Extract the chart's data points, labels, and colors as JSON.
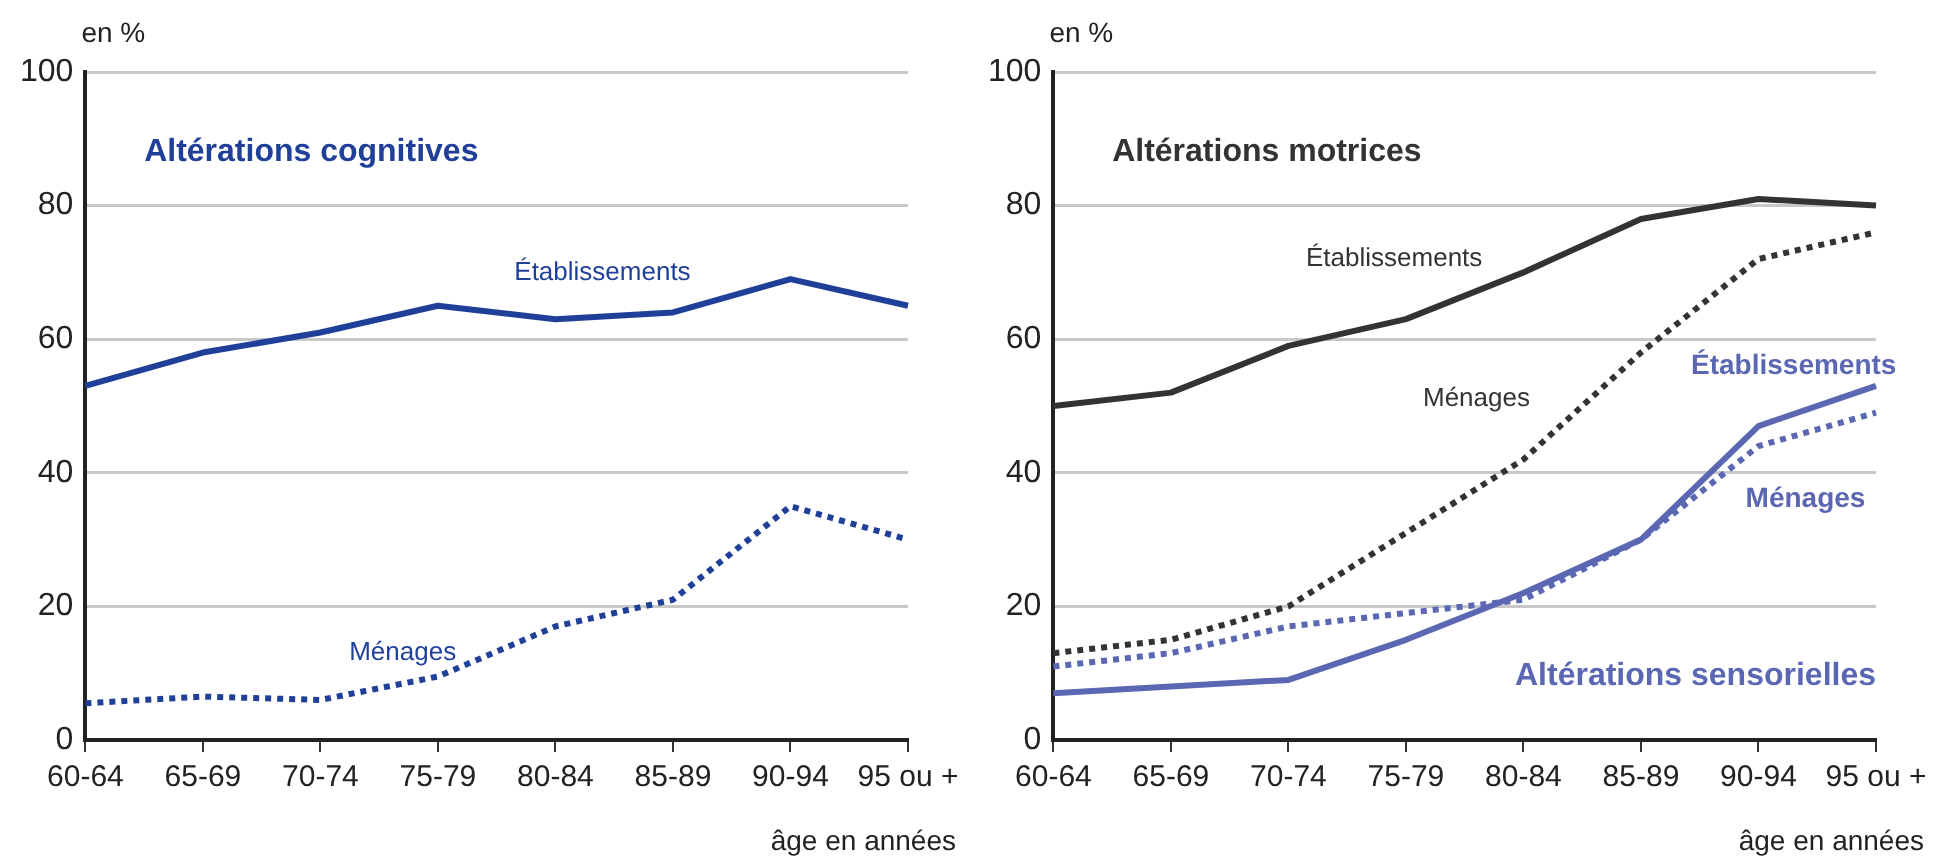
{
  "chart_data": [
    {
      "type": "line",
      "ylabel": "en %",
      "xlabel": "âge en années",
      "categories": [
        "60-64",
        "65-69",
        "70-74",
        "75-79",
        "80-84",
        "85-89",
        "90-94",
        "95 ou +"
      ],
      "series": [
        {
          "name": "Établissements",
          "color": "#1f3f99",
          "line_style": "solid",
          "values": [
            53,
            58,
            61,
            65,
            63,
            64,
            69,
            65
          ]
        },
        {
          "name": "Ménages",
          "color": "#1f3f99",
          "line_style": "dotted",
          "values": [
            5.5,
            6.5,
            6,
            9.5,
            17,
            21,
            35,
            30
          ]
        }
      ],
      "annotations": [
        "Altérations cognitives"
      ],
      "ylim": [
        0,
        100
      ],
      "yticks": [
        0,
        20,
        40,
        60,
        80,
        100
      ],
      "grid": "y",
      "legend": false,
      "marker": "none"
    },
    {
      "type": "line",
      "ylabel": "en %",
      "xlabel": "âge en années",
      "categories": [
        "60-64",
        "65-69",
        "70-74",
        "75-79",
        "80-84",
        "85-89",
        "90-94",
        "95 ou +"
      ],
      "series": [
        {
          "name": "Établissements",
          "color": "#333333",
          "line_style": "solid",
          "values": [
            50,
            52,
            59,
            63,
            70,
            78,
            81,
            80
          ]
        },
        {
          "name": "Ménages",
          "color": "#333333",
          "line_style": "dotted",
          "values": [
            13,
            15,
            20,
            31,
            42,
            58,
            72,
            76
          ]
        },
        {
          "name": "Établissements",
          "color": "#5b67b3",
          "line_style": "solid",
          "values": [
            7,
            8,
            9,
            15,
            22,
            30,
            47,
            53
          ]
        },
        {
          "name": "Ménages",
          "color": "#5b67b3",
          "line_style": "dotted",
          "values": [
            11,
            13,
            17,
            19,
            21,
            30,
            44,
            49
          ]
        }
      ],
      "annotations": [
        "Altérations motrices",
        "Altérations sensorielles"
      ],
      "ylim": [
        0,
        100
      ],
      "yticks": [
        0,
        20,
        40,
        60,
        80,
        100
      ],
      "grid": "y",
      "legend": false,
      "marker": "none"
    }
  ]
}
